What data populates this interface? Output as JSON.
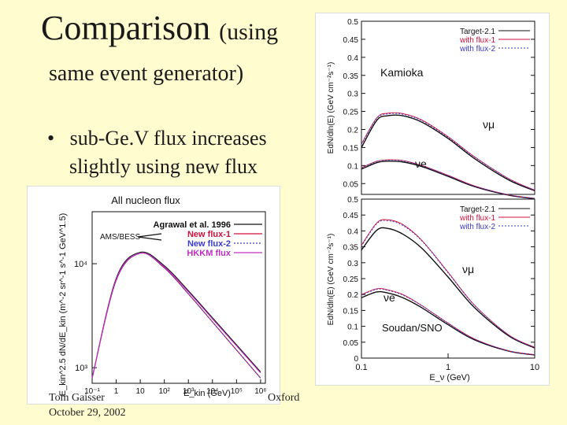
{
  "slide": {
    "title_main": "Comparison",
    "title_paren": "(using",
    "title_line2": "same event generator)",
    "bullet_line1": "sub-Ge.V flux increases",
    "bullet_line2": "slightly using new flux",
    "footer_author": "Tom Gaisser",
    "footer_date": "October 29, 2002",
    "footer_place": "Oxford"
  },
  "colors": {
    "black": "#111111",
    "flux1": "#d0103a",
    "flux2": "#3a3acc",
    "hkkm": "#c030c0"
  },
  "chart_data": [
    {
      "type": "line",
      "title": "All nucleon flux",
      "xlabel": "E_kin (GeV)",
      "ylabel": "E_kin^2.5 dN/dE_kin (m^-2 sr^-1 s^-1 GeV^1.5)",
      "x_ticks": [
        "10⁻¹",
        "1",
        "10",
        "10²",
        "10³",
        "10⁴",
        "10⁵",
        "10⁶"
      ],
      "y_ticks": [
        "10⁴",
        "10³"
      ],
      "annotation": "AMS/BESS",
      "legend": [
        "Agrawal et al. 1996",
        "New flux-1",
        "New flux-2",
        "HKKM flux"
      ],
      "x_log": [
        -1,
        0,
        1,
        2,
        3,
        4,
        5,
        6
      ],
      "series": [
        {
          "name": "Agrawal et al. 1996",
          "values_log": [
            2.9,
            3.86,
            4.11,
            3.98,
            3.74,
            3.48,
            3.22,
            2.96
          ]
        },
        {
          "name": "New flux-1",
          "values_log": [
            2.9,
            3.84,
            4.1,
            3.96,
            3.71,
            3.44,
            3.17,
            2.9
          ]
        },
        {
          "name": "New flux-2",
          "values_log": [
            2.9,
            3.84,
            4.1,
            3.96,
            3.71,
            3.44,
            3.17,
            2.9
          ]
        },
        {
          "name": "HKKM flux",
          "values_log": [
            2.9,
            3.85,
            4.1,
            3.97,
            3.73,
            3.47,
            3.21,
            2.95
          ]
        }
      ],
      "xlim_log": [
        -1,
        6.2
      ],
      "ylim_log": [
        2.85,
        4.5
      ]
    },
    {
      "type": "line",
      "title": "Kamioka",
      "ylabel": "EdN/dln(E) (GeV cm⁻²s⁻¹)",
      "y_ticks": [
        "0.5",
        "0.45",
        "0.4",
        "0.35",
        "0.3",
        "0.25",
        "0.2",
        "0.15",
        "0.1",
        "0.05"
      ],
      "ylim": [
        0.02,
        0.5
      ],
      "legend": [
        "Target-2.1",
        "with flux-1",
        "with flux-2"
      ],
      "labels": {
        "numu": "νμ",
        "nue": "νe"
      },
      "x": [
        0.1,
        0.15,
        0.2,
        0.3,
        0.5,
        1,
        2,
        5,
        10
      ],
      "series": [
        {
          "name": "Target-2.1 νμ",
          "values": [
            0.15,
            0.225,
            0.238,
            0.238,
            0.22,
            0.175,
            0.12,
            0.06,
            0.03
          ]
        },
        {
          "name": "with flux-1 νμ",
          "values": [
            0.16,
            0.232,
            0.245,
            0.244,
            0.226,
            0.18,
            0.125,
            0.064,
            0.032
          ]
        },
        {
          "name": "with flux-2 νμ",
          "values": [
            0.158,
            0.23,
            0.243,
            0.242,
            0.224,
            0.178,
            0.124,
            0.063,
            0.031
          ]
        },
        {
          "name": "Target-2.1 νe",
          "values": [
            0.09,
            0.108,
            0.112,
            0.11,
            0.097,
            0.07,
            0.042,
            0.018,
            0.008
          ]
        },
        {
          "name": "with flux-1 νe",
          "values": [
            0.094,
            0.112,
            0.116,
            0.114,
            0.1,
            0.073,
            0.044,
            0.019,
            0.009
          ]
        },
        {
          "name": "with flux-2 νe",
          "values": [
            0.093,
            0.111,
            0.115,
            0.113,
            0.099,
            0.072,
            0.043,
            0.019,
            0.009
          ]
        }
      ]
    },
    {
      "type": "line",
      "title": "Soudan/SNO",
      "xlabel": "E_ν (GeV)",
      "ylabel": "EdN/dln(E) (GeV cm⁻²s⁻¹)",
      "x_ticks": [
        "0.1",
        "1",
        "10"
      ],
      "y_ticks": [
        "0.5",
        "0.45",
        "0.4",
        "0.35",
        "0.3",
        "0.25",
        "0.2",
        "0.15",
        "0.1",
        "0.05",
        "0"
      ],
      "ylim": [
        0,
        0.5
      ],
      "legend": [
        "Target-2.1",
        "with flux-1",
        "with flux-2"
      ],
      "labels": {
        "numu": "νμ",
        "nue": "νe"
      },
      "x": [
        0.1,
        0.15,
        0.2,
        0.3,
        0.5,
        1,
        2,
        5,
        10
      ],
      "series": [
        {
          "name": "Target-2.1 νμ",
          "values": [
            0.34,
            0.402,
            0.408,
            0.39,
            0.345,
            0.255,
            0.16,
            0.07,
            0.032
          ]
        },
        {
          "name": "with flux-1 νμ",
          "values": [
            0.355,
            0.425,
            0.435,
            0.42,
            0.37,
            0.27,
            0.168,
            0.073,
            0.034
          ]
        },
        {
          "name": "with flux-2 νμ",
          "values": [
            0.352,
            0.422,
            0.432,
            0.417,
            0.368,
            0.268,
            0.167,
            0.072,
            0.033
          ]
        },
        {
          "name": "Target-2.1 νe",
          "values": [
            0.19,
            0.208,
            0.205,
            0.19,
            0.158,
            0.105,
            0.058,
            0.022,
            0.01
          ]
        },
        {
          "name": "with flux-1 νe",
          "values": [
            0.2,
            0.218,
            0.215,
            0.2,
            0.165,
            0.11,
            0.061,
            0.023,
            0.011
          ]
        },
        {
          "name": "with flux-2 νe",
          "values": [
            0.198,
            0.216,
            0.213,
            0.198,
            0.164,
            0.109,
            0.06,
            0.023,
            0.011
          ]
        }
      ]
    }
  ]
}
